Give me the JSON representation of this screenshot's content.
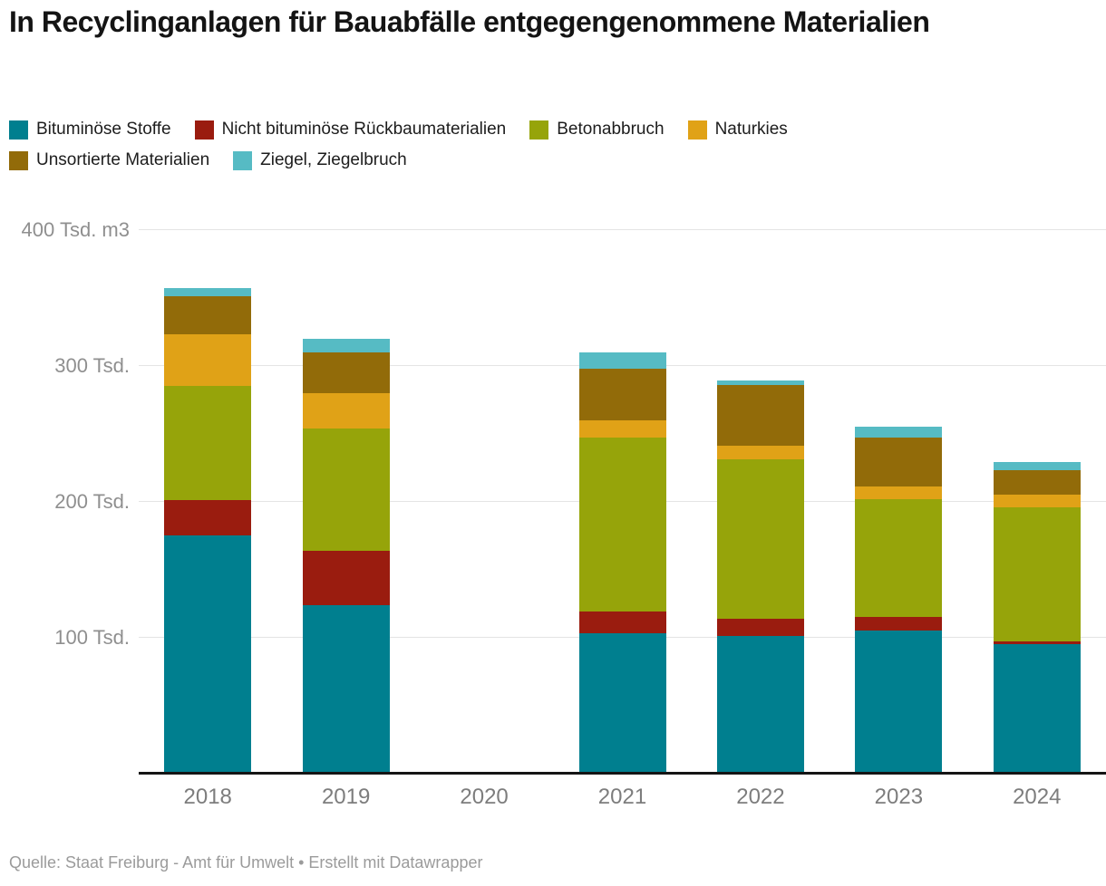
{
  "title": "In Recyclinganlagen für Bauabfälle entgegengenommene Materialien",
  "footer": {
    "source_line": "Quelle: Staat Freiburg - Amt für Umwelt • Erstellt mit Datawrapper"
  },
  "axis": {
    "y_ticks": [
      {
        "label": "400 Tsd. m3",
        "value": 400
      },
      {
        "label": "300 Tsd.",
        "value": 300
      },
      {
        "label": "200 Tsd.",
        "value": 200
      },
      {
        "label": "100 Tsd.",
        "value": 100
      }
    ]
  },
  "chart_data": {
    "type": "bar",
    "stacked": true,
    "title": "In Recyclinganlagen für Bauabfälle entgegengenommene Materialien",
    "unit": "Tsd. m3",
    "ylim": [
      0,
      400
    ],
    "grid": true,
    "legend_position": "top",
    "categories": [
      "2018",
      "2019",
      "2020",
      "2021",
      "2022",
      "2023",
      "2024"
    ],
    "series": [
      {
        "name": "Bituminöse Stoffe",
        "color": "#007f8f",
        "values": [
          174,
          123,
          null,
          102,
          100,
          104,
          94
        ]
      },
      {
        "name": "Nicht bituminöse Rückbaumaterialien",
        "color": "#9a1c0f",
        "values": [
          26,
          40,
          null,
          16,
          13,
          10,
          2
        ]
      },
      {
        "name": "Betonabbruch",
        "color": "#96a40a",
        "values": [
          84,
          90,
          null,
          128,
          117,
          87,
          99
        ]
      },
      {
        "name": "Naturkies",
        "color": "#e0a217",
        "values": [
          38,
          26,
          null,
          13,
          10,
          9,
          9
        ]
      },
      {
        "name": "Unsortierte Materialien",
        "color": "#926b09",
        "values": [
          28,
          30,
          null,
          38,
          45,
          36,
          18
        ]
      },
      {
        "name": "Ziegel, Ziegelbruch",
        "color": "#56bbc4",
        "values": [
          6,
          10,
          null,
          12,
          3,
          8,
          6
        ]
      }
    ]
  }
}
